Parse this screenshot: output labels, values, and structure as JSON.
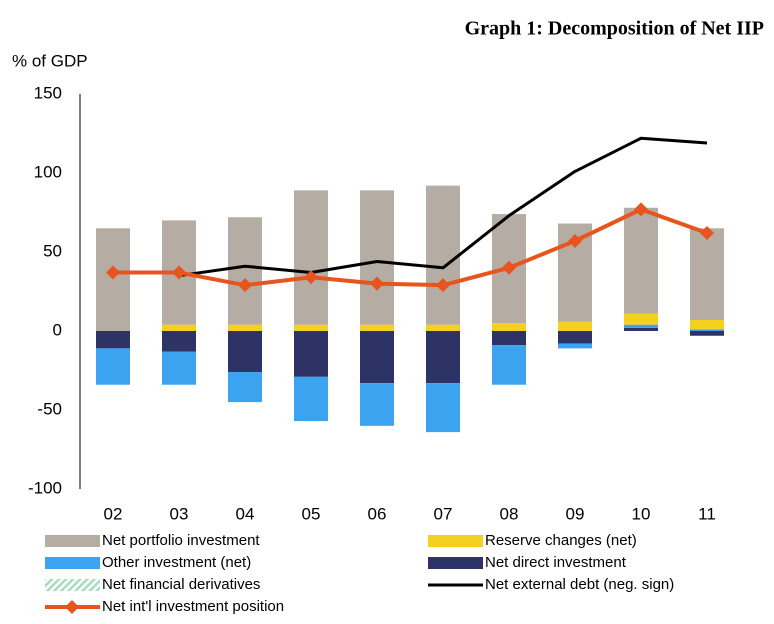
{
  "chart_data": {
    "type": "bar",
    "stacked": true,
    "title": "Graph 1: Decomposition of Net IIP",
    "y_label": "% of GDP",
    "categories": [
      "02",
      "03",
      "04",
      "05",
      "06",
      "07",
      "08",
      "09",
      "10",
      "11"
    ],
    "ylim": [
      -100,
      150
    ],
    "yticks": [
      -100,
      -50,
      0,
      50,
      100,
      150
    ],
    "grid": false,
    "legend": "bottom",
    "series": [
      {
        "name": "Net portfolio investment",
        "type": "bar",
        "color": "#b5aca3",
        "values": [
          65,
          66,
          68,
          85,
          85,
          88,
          69,
          62,
          67,
          58
        ]
      },
      {
        "name": "Reserve changes (net)",
        "type": "bar",
        "color": "#f5d11f",
        "values": [
          0,
          4,
          4,
          4,
          4,
          4,
          5,
          6,
          7,
          6
        ]
      },
      {
        "name": "Other investment (net)",
        "type": "bar",
        "color": "#3ba3f0",
        "values": [
          -23,
          -21,
          -19,
          -28,
          -27,
          -31,
          -25,
          -3,
          2,
          1
        ]
      },
      {
        "name": "Net direct investment",
        "type": "bar",
        "color": "#2e3366",
        "values": [
          -11,
          -13,
          -26,
          -29,
          -33,
          -33,
          -9,
          -8,
          2,
          -3
        ]
      },
      {
        "name": "Net financial derivatives",
        "type": "bar",
        "color": "#a8dcc0",
        "hatch": true,
        "values": [
          0,
          0,
          0,
          0,
          0,
          0,
          0,
          0,
          0,
          0
        ]
      },
      {
        "name": "Net external debt (neg. sign)",
        "type": "line",
        "color": "#000000",
        "values": [
          null,
          35,
          41,
          37,
          44,
          40,
          73,
          101,
          122,
          119
        ]
      },
      {
        "name": "Net int'l investment position",
        "type": "line",
        "color": "#e8541e",
        "marker": "diamond",
        "values": [
          37,
          37,
          29,
          34,
          30,
          29,
          40,
          57,
          77,
          62
        ]
      }
    ]
  }
}
